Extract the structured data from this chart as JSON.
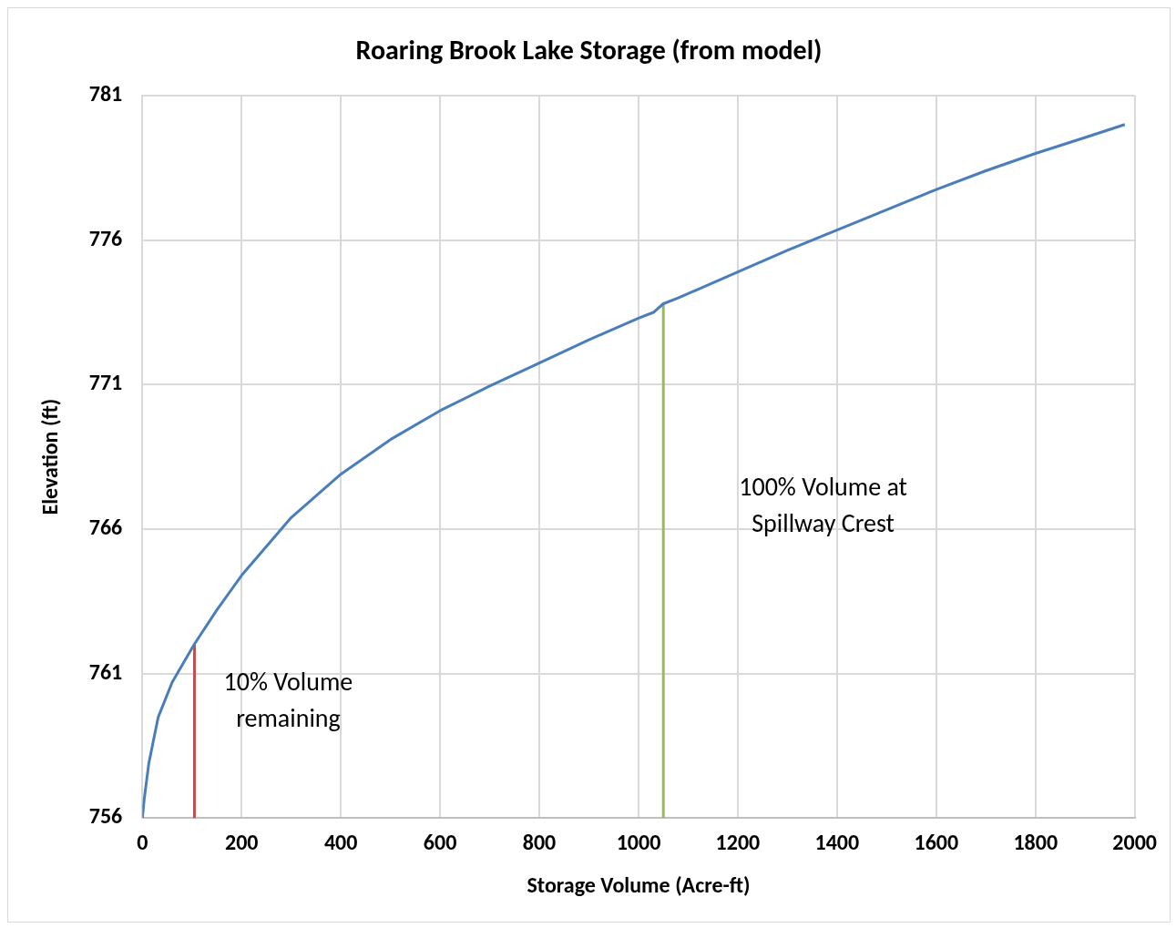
{
  "chart_data": {
    "type": "line",
    "title": "Roaring Brook Lake Storage (from model)",
    "xlabel": "Storage Volume (Acre-ft)",
    "ylabel": "Elevation (ft)",
    "series": [
      {
        "color": "#4a7ebb",
        "x": [
          0,
          4,
          13,
          32,
          60,
          104,
          150,
          200,
          300,
          400,
          500,
          600,
          700,
          800,
          900,
          1000,
          1030,
          1050,
          1080,
          1200,
          1300,
          1400,
          1500,
          1600,
          1700,
          1800,
          1900,
          1980
        ],
        "values": [
          756,
          756.7,
          757.9,
          759.5,
          760.7,
          762.0,
          763.2,
          764.4,
          766.4,
          767.9,
          769.1,
          770.1,
          770.95,
          771.75,
          772.55,
          773.3,
          773.5,
          773.8,
          774.0,
          774.9,
          775.65,
          776.35,
          777.05,
          777.75,
          778.4,
          779.0,
          779.55,
          780.0
        ]
      },
      {
        "color": "#c0504d",
        "x": [
          105,
          105
        ],
        "values": [
          756,
          762.0
        ]
      },
      {
        "color": "#9bbb59",
        "x": [
          1050,
          1050
        ],
        "values": [
          756,
          773.8
        ]
      }
    ],
    "xlim": [
      0,
      2000
    ],
    "xticks": [
      0,
      200,
      400,
      600,
      800,
      1000,
      1200,
      1400,
      1600,
      1800,
      2000
    ],
    "ylim": [
      756,
      781
    ],
    "yticks": [
      756,
      761,
      766,
      771,
      776,
      781
    ],
    "grid": true,
    "legend": false,
    "marker": "none",
    "line_style": "solid",
    "annotations": [
      "10% Volume\nremaining",
      "100% Volume at\nSpillway Crest"
    ]
  }
}
